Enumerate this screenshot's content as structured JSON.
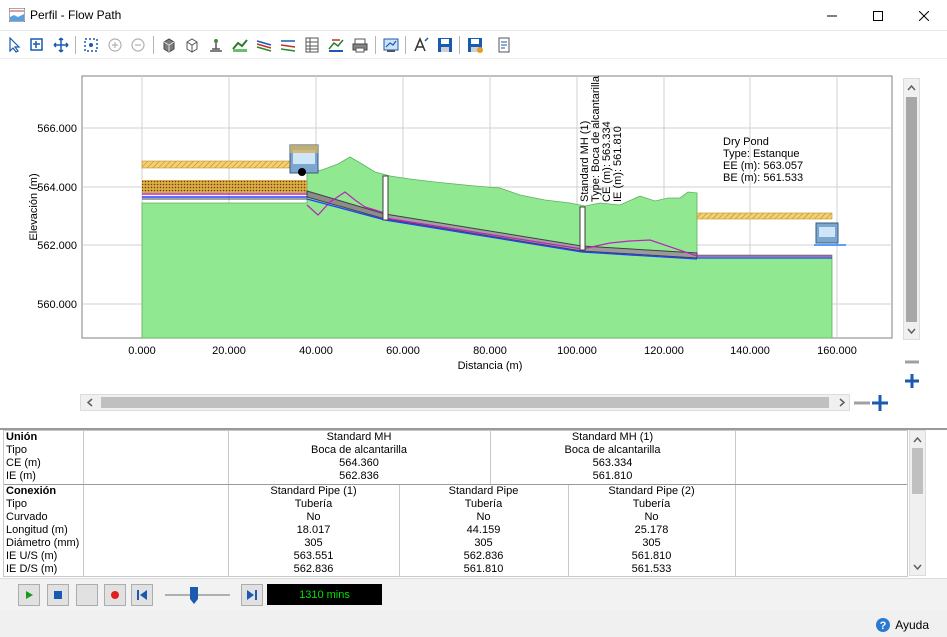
{
  "window": {
    "title": "Perfil - Flow Path"
  },
  "toolbar": {
    "icons": [
      "pointer-icon",
      "zoom-window-icon",
      "pan-icon",
      "zoom-extents-icon",
      "zoom-in-icon",
      "zoom-out-icon",
      "3d-view-icon",
      "wireframe-icon",
      "label-icon",
      "hgl-icon",
      "profile-lines-icon",
      "profile-lines-2-icon",
      "table-icon",
      "annotations-icon",
      "print-icon",
      "chart-options-icon",
      "text-icon",
      "save-icon",
      "save-as-icon",
      "export-icon"
    ]
  },
  "chart": {
    "ylabel": "Elevación (m)",
    "xlabel": "Distancia (m)",
    "y_ticks": [
      "566.000",
      "564.000",
      "562.000",
      "560.000"
    ],
    "x_ticks": [
      "0.000",
      "20.000",
      "40.000",
      "60.000",
      "80.000",
      "100.000",
      "120.000",
      "140.000",
      "160.000"
    ],
    "annotations": {
      "mh1": [
        "Standard MH (1)",
        "Type: Boca de alcantarilla",
        "CE (m): 563.334",
        "IE (m): 561.810"
      ],
      "pond": [
        "Dry Pond",
        "Type: Estanque",
        "EE (m): 563.057",
        "BE (m): 561.533"
      ]
    },
    "colors": {
      "ground": "#90e890",
      "pipe": "#a0a0a0",
      "hgl": "#c020c0",
      "water": "#2040ff",
      "pond_top": "#e8c060"
    }
  },
  "table": {
    "junction_header": "Unión",
    "junction_rows": [
      "Tipo",
      "CE (m)",
      "IE (m)"
    ],
    "junctions": [
      {
        "name": "Standard MH",
        "type": "Boca de alcantarilla",
        "ce": "564.360",
        "ie": "562.836"
      },
      {
        "name": "Standard MH (1)",
        "type": "Boca de alcantarilla",
        "ce": "563.334",
        "ie": "561.810"
      }
    ],
    "conduit_header": "Conexión",
    "conduit_rows": [
      "Tipo",
      "Curvado",
      "Longitud (m)",
      "Diámetro (mm)",
      "IE U/S (m)",
      "IE D/S (m)"
    ],
    "conduits": [
      {
        "name": "Standard Pipe (1)",
        "type": "Tubería",
        "curved": "No",
        "length": "18.017",
        "diameter": "305",
        "ie_us": "563.551",
        "ie_ds": "562.836"
      },
      {
        "name": "Standard Pipe",
        "type": "Tubería",
        "curved": "No",
        "length": "44.159",
        "diameter": "305",
        "ie_us": "562.836",
        "ie_ds": "561.810"
      },
      {
        "name": "Standard Pipe (2)",
        "type": "Tubería",
        "curved": "No",
        "length": "25.178",
        "diameter": "305",
        "ie_us": "561.810",
        "ie_ds": "561.533"
      }
    ]
  },
  "player": {
    "time": "1310 mins",
    "slider_value": 0.4
  },
  "status": {
    "help": "Ayuda"
  }
}
